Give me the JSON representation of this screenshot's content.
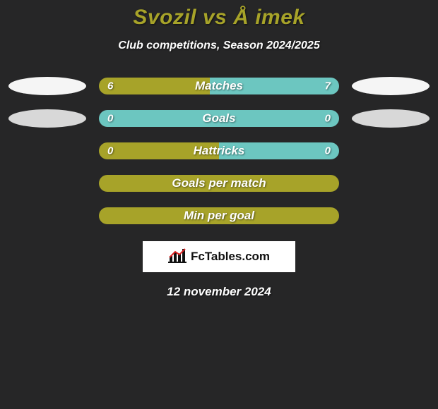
{
  "title_color": "#a7a329",
  "title_parts": {
    "p1": "Svozil",
    "vs": "vs",
    "p2": "Å imek"
  },
  "subtitle": "Club competitions, Season 2024/2025",
  "colors": {
    "olive": "#a7a329",
    "teal": "#6cc6c0",
    "white": "#f5f5f5",
    "gray": "#d8d8d8"
  },
  "rows": [
    {
      "label": "Matches",
      "left_val": "6",
      "right_val": "7",
      "left_pct": 46.15,
      "right_pct": 53.85,
      "left_bar": "#a7a329",
      "right_bar": "#6cc6c0",
      "ellipse_left": "#f5f5f5",
      "ellipse_right": "#f5f5f5",
      "show_ellipses": true
    },
    {
      "label": "Goals",
      "left_val": "0",
      "right_val": "0",
      "left_pct": 50,
      "right_pct": 50,
      "left_bar": "#6cc6c0",
      "right_bar": "#6cc6c0",
      "ellipse_left": "#d8d8d8",
      "ellipse_right": "#d8d8d8",
      "show_ellipses": true
    },
    {
      "label": "Hattricks",
      "left_val": "0",
      "right_val": "0",
      "left_pct": 50,
      "right_pct": 50,
      "left_bar": "#a7a329",
      "right_bar": "#6cc6c0",
      "show_ellipses": false
    },
    {
      "label": "Goals per match",
      "left_val": "",
      "right_val": "",
      "left_pct": 100,
      "right_pct": 0,
      "left_bar": "#a7a329",
      "right_bar": "#a7a329",
      "show_ellipses": false
    },
    {
      "label": "Min per goal",
      "left_val": "",
      "right_val": "",
      "left_pct": 100,
      "right_pct": 0,
      "left_bar": "#a7a329",
      "right_bar": "#a7a329",
      "show_ellipses": false
    }
  ],
  "logo_text": "FcTables.com",
  "date": "12 november 2024"
}
